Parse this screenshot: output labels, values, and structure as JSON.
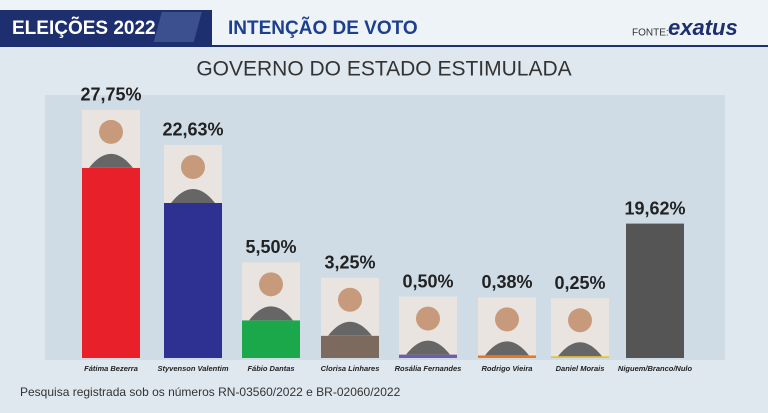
{
  "header": {
    "badge": "ELEIÇÕES 2022",
    "title": "INTENÇÃO DE VOTO",
    "source_label": "FONTE:",
    "logo": "exatus"
  },
  "chart_data": {
    "type": "bar",
    "title": "GOVERNO DO ESTADO ESTIMULADA",
    "categories": [
      "Fátima Bezerra",
      "Styvenson Valentim",
      "Fábio Dantas",
      "Clorisa Linhares",
      "Rosália Fernandes",
      "Rodrigo Vieira",
      "Daniel Morais",
      "Niguem/Branco/Nulo"
    ],
    "values": [
      27.75,
      22.63,
      5.5,
      3.25,
      0.5,
      0.38,
      0.25,
      19.62
    ],
    "value_labels": [
      "27,75%",
      "22,63%",
      "5,50%",
      "3,25%",
      "0,50%",
      "0,38%",
      "0,25%",
      "19,62%"
    ],
    "colors": [
      "#e8202a",
      "#2e3192",
      "#1aa84a",
      "#7d6a5e",
      "#6c5ea8",
      "#e87722",
      "#f2c200",
      "#555555"
    ],
    "photos": [
      true,
      true,
      true,
      true,
      true,
      true,
      true,
      false
    ],
    "footnote": "Pesquisa registrada sob os números RN-03560/2022 e BR-02060/2022"
  }
}
